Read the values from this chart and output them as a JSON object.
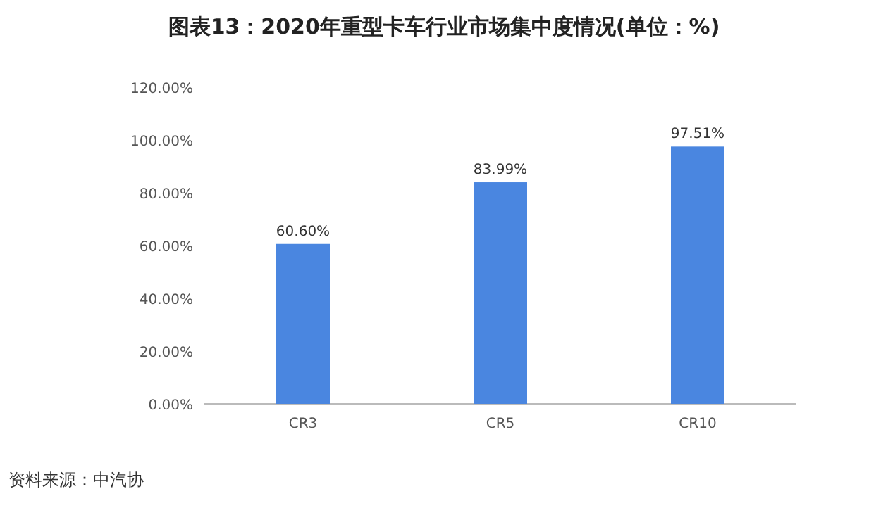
{
  "chart_data": {
    "type": "bar",
    "title": "图表13：2020年重型卡车行业市场集中度情况(单位：%)",
    "categories": [
      "CR3",
      "CR5",
      "CR10"
    ],
    "values": [
      60.6,
      83.99,
      97.51
    ],
    "value_labels": [
      "60.60%",
      "83.99%",
      "97.51%"
    ],
    "color": "#4a86e0",
    "ylim": [
      0,
      120
    ],
    "yticks": [
      {
        "value": 0,
        "label": "0.00%"
      },
      {
        "value": 20,
        "label": "20.00%"
      },
      {
        "value": 40,
        "label": "40.00%"
      },
      {
        "value": 60,
        "label": "60.00%"
      },
      {
        "value": 80,
        "label": "80.00%"
      },
      {
        "value": 100,
        "label": "100.00%"
      },
      {
        "value": 120,
        "label": "120.00%"
      }
    ],
    "annotations": [
      "资料来源：中汽协"
    ]
  }
}
